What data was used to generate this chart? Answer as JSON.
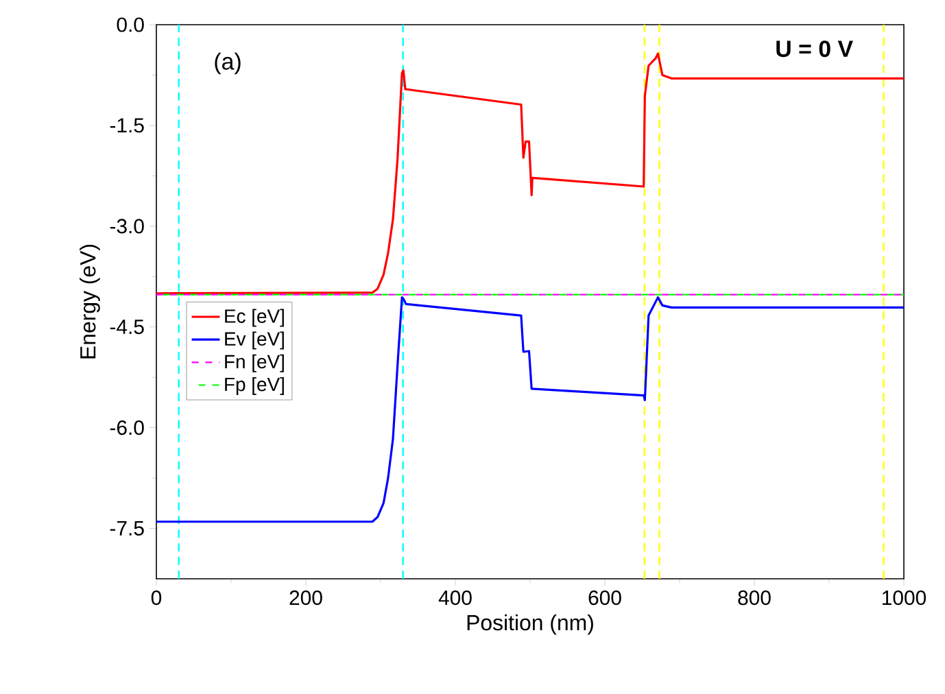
{
  "chart_data": {
    "type": "line",
    "xlabel": "Position (nm)",
    "ylabel": "Energy (eV)",
    "xlim": [
      0,
      1000
    ],
    "ylim": [
      -8.25,
      0
    ],
    "xticks": [
      0,
      200,
      400,
      600,
      800,
      1000
    ],
    "yticks": [
      {
        "value": 0,
        "label": "0.0"
      },
      -1.5,
      {
        "value": -3,
        "label": "-3.0"
      },
      -4.5,
      {
        "value": -6,
        "label": "-6.0"
      },
      -7.5
    ],
    "legend": "left",
    "grid": false,
    "annotations": [
      "(a)",
      "U = 0 V"
    ],
    "ref_lines": [
      {
        "axis": "x",
        "value": 30,
        "color": "#00ffff",
        "line_style": "dashed"
      },
      {
        "axis": "x",
        "value": 330,
        "color": "#00ffff",
        "line_style": "dashed"
      },
      {
        "axis": "x",
        "value": 653,
        "color": "#ffff00",
        "line_style": "dashed"
      },
      {
        "axis": "x",
        "value": 673,
        "color": "#ffff00",
        "line_style": "dashed"
      },
      {
        "axis": "x",
        "value": 973,
        "color": "#ffff00",
        "line_style": "dashed"
      }
    ],
    "series": [
      {
        "name": "Ec [eV]",
        "color": "#ff0000",
        "line_style": "solid",
        "x": [
          0,
          289,
          296,
          304,
          310,
          316.5,
          322.6,
          328.6,
          330.5,
          333,
          488,
          491,
          494,
          498.6,
          502,
          503,
          652,
          653.5,
          658.5,
          668,
          671,
          677,
          689,
          1000
        ],
        "values": [
          -4.0,
          -3.99,
          -3.93,
          -3.72,
          -3.4,
          -2.9,
          -2.01,
          -0.72,
          -0.68,
          -0.96,
          -1.19,
          -1.98,
          -1.74,
          -1.74,
          -2.54,
          -2.28,
          -2.41,
          -1.06,
          -0.61,
          -0.5,
          -0.43,
          -0.75,
          -0.8,
          -0.8
        ]
      },
      {
        "name": "Ev [eV]",
        "color": "#0000ff",
        "line_style": "solid",
        "x": [
          0,
          289,
          296,
          304,
          310,
          316.5,
          322.6,
          328.6,
          330.5,
          334,
          488,
          491,
          498.6,
          502,
          652,
          653.5,
          658.5,
          665,
          671,
          677,
          689,
          1000
        ],
        "values": [
          -7.4,
          -7.4,
          -7.33,
          -7.12,
          -6.75,
          -6.17,
          -5.08,
          -4.06,
          -4.08,
          -4.16,
          -4.33,
          -4.87,
          -4.86,
          -5.42,
          -5.52,
          -5.59,
          -4.33,
          -4.19,
          -4.06,
          -4.18,
          -4.21,
          -4.21
        ]
      },
      {
        "name": "Fn [eV]",
        "color": "#ff00ff",
        "line_style": "dashed",
        "x": [
          0,
          1000
        ],
        "values": [
          -4.02,
          -4.02
        ]
      },
      {
        "name": "Fp [eV]",
        "color": "#00ff00",
        "line_style": "dashed",
        "x": [
          0,
          1000
        ],
        "values": [
          -4.02,
          -4.02
        ]
      }
    ]
  }
}
